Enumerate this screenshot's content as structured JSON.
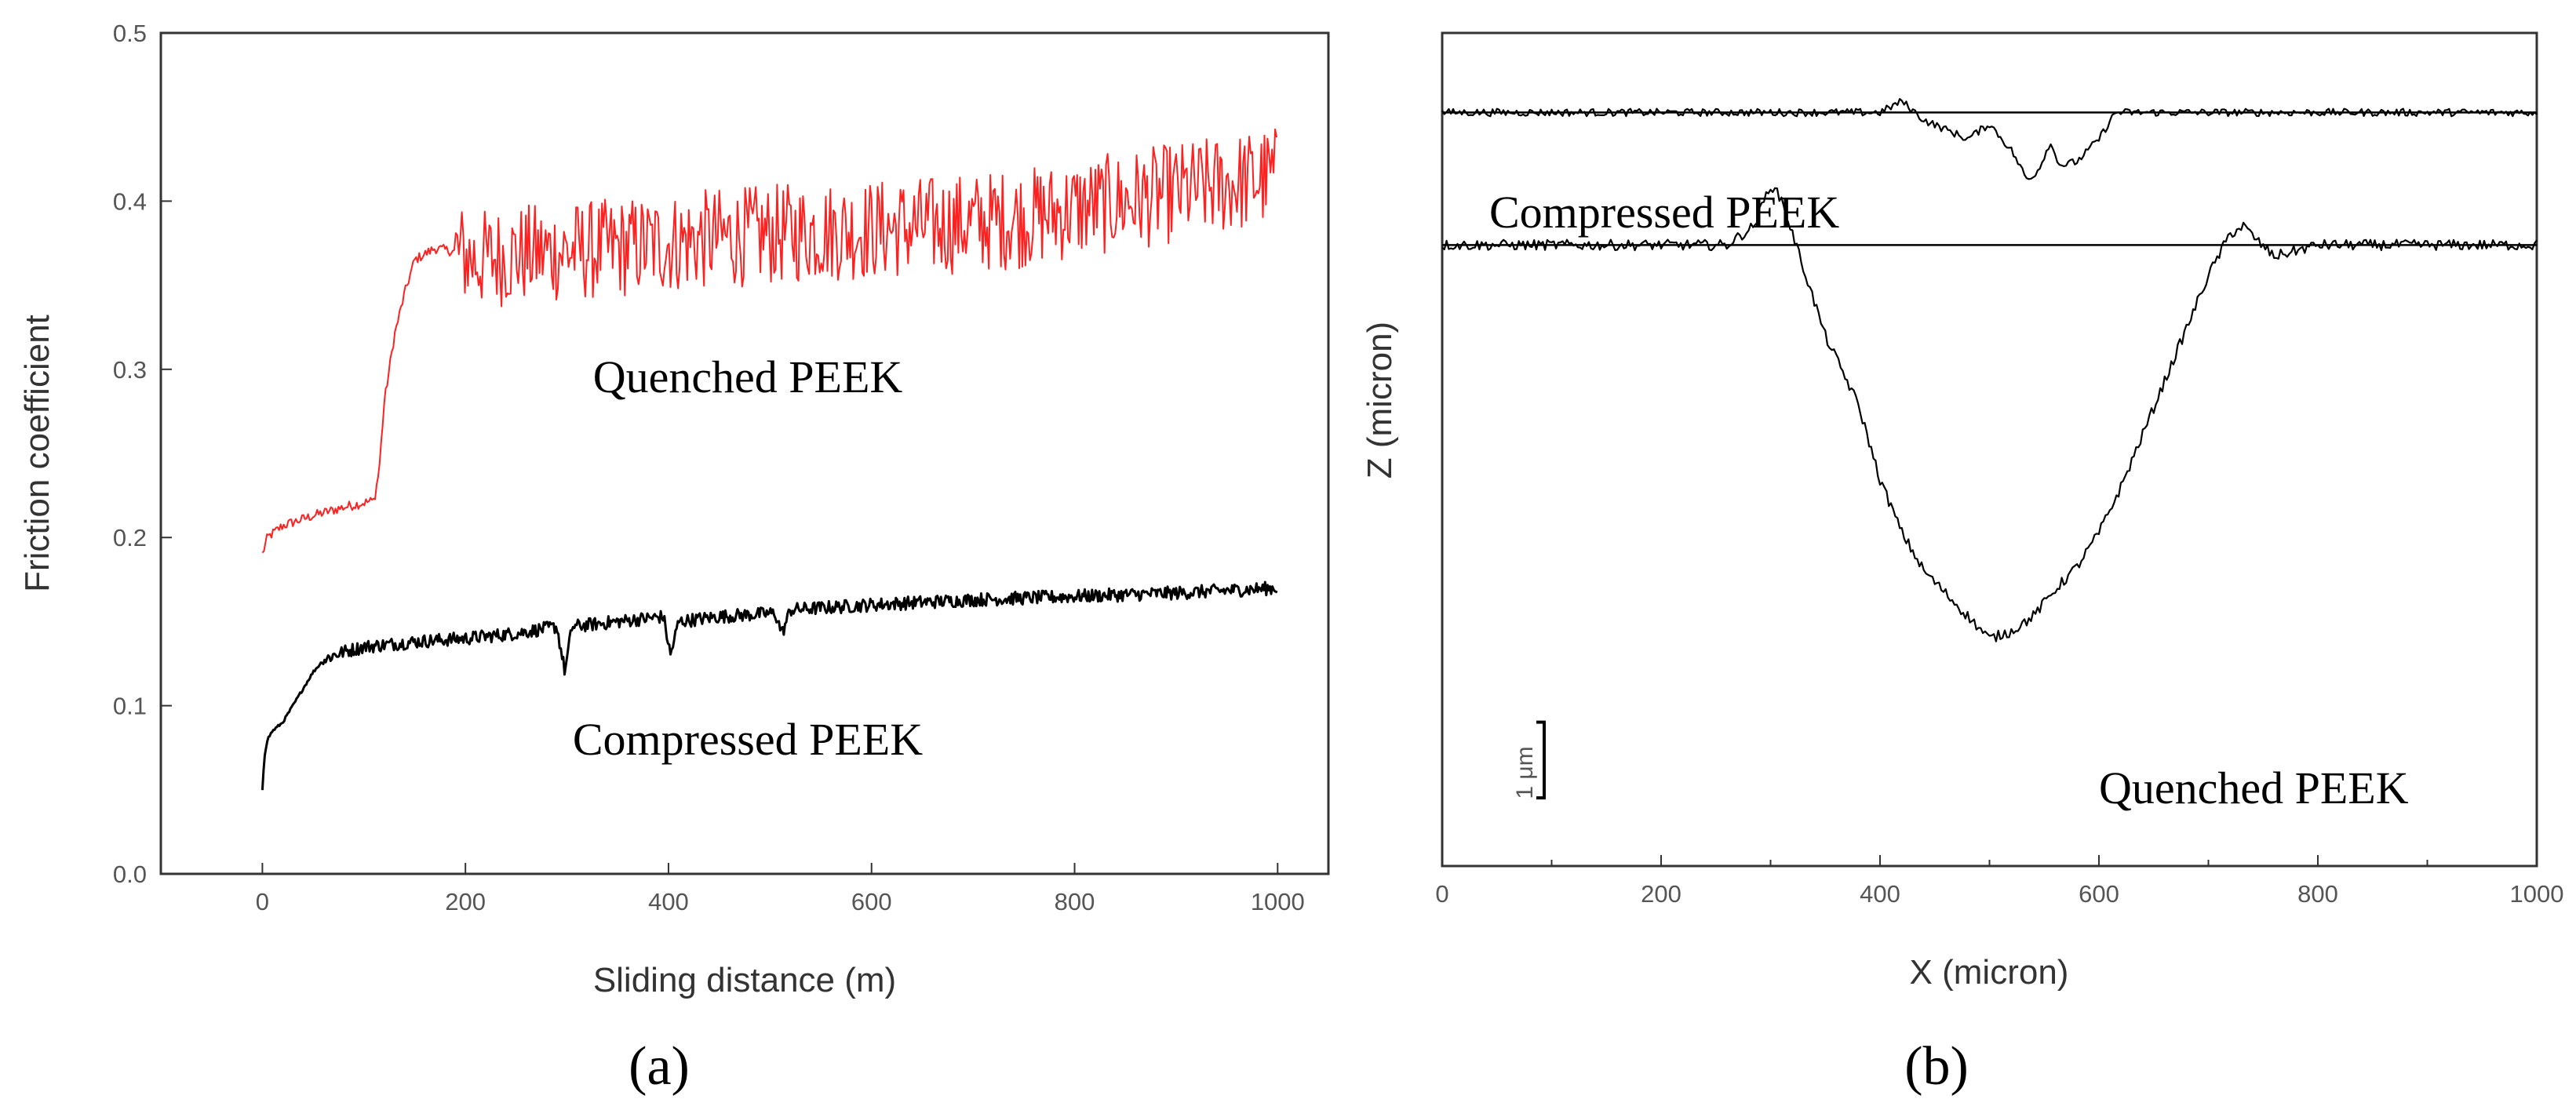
{
  "chart_data": [
    {
      "type": "line",
      "panel_label": "(a)",
      "xlabel": "Sliding distance (m)",
      "ylabel": "Friction coefficient",
      "xlim": [
        -100,
        1050
      ],
      "ylim": [
        0.0,
        0.5
      ],
      "xticks": [
        0,
        200,
        400,
        600,
        800,
        1000
      ],
      "yticks": [
        0.0,
        0.1,
        0.2,
        0.3,
        0.4,
        0.5
      ],
      "grid": false,
      "series": [
        {
          "name": "Quenched PEEK",
          "color": "#ff2020",
          "noise": 0.03,
          "x": [
            0,
            5,
            20,
            50,
            80,
            110,
            115,
            120,
            130,
            140,
            150,
            170,
            190,
            210,
            250,
            300,
            350,
            400,
            450,
            500,
            550,
            600,
            650,
            700,
            750,
            800,
            850,
            900,
            950,
            1000
          ],
          "y": [
            0.19,
            0.2,
            0.207,
            0.213,
            0.218,
            0.222,
            0.24,
            0.28,
            0.32,
            0.345,
            0.365,
            0.372,
            0.37,
            0.365,
            0.368,
            0.37,
            0.372,
            0.375,
            0.378,
            0.38,
            0.382,
            0.383,
            0.385,
            0.387,
            0.39,
            0.395,
            0.4,
            0.405,
            0.41,
            0.415
          ]
        },
        {
          "name": "Compressed PEEK",
          "color": "#000000",
          "noise": 0.004,
          "x": [
            0,
            2,
            5,
            10,
            20,
            30,
            40,
            50,
            60,
            70,
            80,
            100,
            150,
            200,
            250,
            290,
            298,
            305,
            350,
            395,
            402,
            410,
            450,
            505,
            512,
            520,
            600,
            700,
            800,
            900,
            1000
          ],
          "y": [
            0.05,
            0.07,
            0.08,
            0.085,
            0.09,
            0.1,
            0.11,
            0.12,
            0.127,
            0.13,
            0.132,
            0.135,
            0.138,
            0.14,
            0.143,
            0.147,
            0.12,
            0.147,
            0.15,
            0.153,
            0.13,
            0.15,
            0.153,
            0.155,
            0.143,
            0.157,
            0.16,
            0.163,
            0.165,
            0.167,
            0.17
          ]
        }
      ],
      "annotations": [
        "Quenched PEEK",
        "Compressed PEEK"
      ]
    },
    {
      "type": "line",
      "panel_label": "(b)",
      "xlabel": "X (micron)",
      "ylabel": "Z (micron)",
      "xlim": [
        0,
        1000
      ],
      "ylim": [
        -5.5,
        5.5
      ],
      "xticks": [
        0,
        200,
        400,
        600,
        800,
        1000
      ],
      "yticks": [],
      "grid": false,
      "scale_bar_label": "1 μm",
      "scale_bar_value": 1,
      "series": [
        {
          "name": "Compressed PEEK",
          "color": "#000000",
          "noise": 0.05,
          "baseline": 4.45,
          "x": [
            0,
            400,
            420,
            440,
            480,
            500,
            520,
            535,
            545,
            555,
            565,
            580,
            600,
            615,
            1000
          ],
          "y": [
            4.45,
            4.45,
            4.6,
            4.35,
            4.1,
            4.3,
            3.95,
            3.55,
            3.7,
            4.05,
            3.75,
            3.8,
            4.1,
            4.45,
            4.45
          ]
        },
        {
          "name": "Quenched PEEK",
          "color": "#000000",
          "noise": 0.07,
          "baseline": 2.7,
          "x": [
            0,
            260,
            285,
            300,
            310,
            330,
            350,
            380,
            400,
            420,
            440,
            460,
            480,
            500,
            520,
            540,
            560,
            580,
            600,
            620,
            640,
            660,
            680,
            700,
            720,
            732,
            745,
            760,
            800,
            1000
          ],
          "y": [
            2.7,
            2.7,
            2.95,
            3.5,
            3.3,
            2.4,
            1.5,
            0.6,
            -0.4,
            -1.1,
            -1.6,
            -1.9,
            -2.2,
            -2.5,
            -2.4,
            -2.2,
            -1.85,
            -1.55,
            -1.1,
            -0.5,
            0.2,
            0.9,
            1.6,
            2.3,
            2.85,
            2.95,
            2.75,
            2.55,
            2.7,
            2.7
          ]
        }
      ],
      "annotations": [
        "Compressed PEEK",
        "Quenched PEEK"
      ]
    }
  ]
}
